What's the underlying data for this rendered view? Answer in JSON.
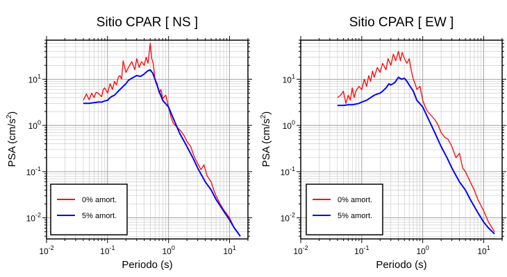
{
  "chart_data": [
    {
      "type": "line",
      "title": "Sitio CPAR [ NS ]",
      "xlabel": "Periodo (s)",
      "ylabel_base": "PSA (cm/s",
      "ylabel_sup": "2",
      "ylabel_end": ")",
      "x_scale": "log",
      "y_scale": "log",
      "xlim": [
        0.01,
        20
      ],
      "ylim": [
        0.0035,
        70
      ],
      "grid": true,
      "legend": "bottom-left",
      "x_ticks": [
        {
          "base": "10",
          "exp": "-2",
          "value": 0.01
        },
        {
          "base": "10",
          "exp": "-1",
          "value": 0.1
        },
        {
          "base": "10",
          "exp": "0",
          "value": 1
        },
        {
          "base": "10",
          "exp": "1",
          "value": 10
        }
      ],
      "y_ticks": [
        {
          "base": "10",
          "exp": "-2",
          "value": 0.01
        },
        {
          "base": "10",
          "exp": "-1",
          "value": 0.1
        },
        {
          "base": "10",
          "exp": "0",
          "value": 1
        },
        {
          "base": "10",
          "exp": "1",
          "value": 10
        }
      ],
      "series": [
        {
          "name": "0% amort.",
          "color": "#ff0000",
          "x": [
            0.04,
            0.045,
            0.05,
            0.055,
            0.06,
            0.065,
            0.07,
            0.08,
            0.085,
            0.09,
            0.1,
            0.11,
            0.12,
            0.13,
            0.14,
            0.15,
            0.16,
            0.17,
            0.18,
            0.2,
            0.22,
            0.25,
            0.28,
            0.3,
            0.33,
            0.36,
            0.4,
            0.43,
            0.46,
            0.5,
            0.53,
            0.56,
            0.6,
            0.65,
            0.7,
            0.75,
            0.8,
            0.9,
            1.0,
            1.1,
            1.2,
            1.4,
            1.6,
            1.8,
            2.0,
            2.3,
            2.6,
            3.0,
            3.4,
            3.8,
            4.3,
            5.0,
            5.5,
            6.0,
            7.0,
            8.0,
            10.0,
            12.0,
            15.0
          ],
          "y": [
            3.5,
            4.8,
            3.6,
            5.0,
            4.0,
            5.2,
            5.0,
            4.2,
            6.0,
            6.5,
            5.0,
            8.0,
            6.0,
            9.0,
            7.5,
            11.0,
            12.0,
            10.0,
            25.0,
            14.0,
            18.0,
            24.0,
            16.0,
            28.0,
            18.0,
            24.0,
            20.0,
            30.0,
            22.0,
            60.0,
            28.0,
            22.0,
            10.0,
            8.0,
            5.0,
            6.0,
            3.8,
            4.5,
            2.5,
            1.5,
            1.1,
            0.9,
            0.75,
            0.6,
            0.45,
            0.35,
            0.22,
            0.15,
            0.11,
            0.14,
            0.08,
            0.06,
            0.04,
            0.03,
            0.02,
            0.015,
            0.01,
            0.006,
            0.004
          ]
        },
        {
          "name": "5% amort.",
          "color": "#0000ff",
          "x": [
            0.04,
            0.05,
            0.06,
            0.07,
            0.08,
            0.09,
            0.1,
            0.11,
            0.12,
            0.13,
            0.14,
            0.15,
            0.17,
            0.2,
            0.22,
            0.25,
            0.3,
            0.35,
            0.4,
            0.45,
            0.5,
            0.55,
            0.6,
            0.7,
            0.8,
            1.0,
            1.2,
            1.5,
            2.0,
            2.5,
            3.0,
            4.0,
            5.0,
            6.0,
            8.0,
            10.0,
            12.0,
            15.0
          ],
          "y": [
            3.0,
            3.0,
            3.1,
            3.2,
            3.2,
            3.4,
            3.5,
            4.0,
            4.3,
            4.5,
            5.0,
            5.5,
            6.5,
            8.0,
            9.5,
            10.5,
            12.0,
            11.5,
            13.0,
            15.0,
            16.0,
            13.5,
            10.0,
            5.5,
            3.5,
            2.5,
            1.4,
            0.7,
            0.35,
            0.2,
            0.12,
            0.06,
            0.04,
            0.025,
            0.014,
            0.009,
            0.006,
            0.004
          ]
        }
      ]
    },
    {
      "type": "line",
      "title": "Sitio CPAR [ EW ]",
      "xlabel": "Periodo (s)",
      "ylabel_base": "PSA (cm/s",
      "ylabel_sup": "2",
      "ylabel_end": ")",
      "x_scale": "log",
      "y_scale": "log",
      "xlim": [
        0.01,
        20
      ],
      "ylim": [
        0.0035,
        70
      ],
      "grid": true,
      "legend": "bottom-left",
      "x_ticks": [
        {
          "base": "10",
          "exp": "-2",
          "value": 0.01
        },
        {
          "base": "10",
          "exp": "-1",
          "value": 0.1
        },
        {
          "base": "10",
          "exp": "0",
          "value": 1
        },
        {
          "base": "10",
          "exp": "1",
          "value": 10
        }
      ],
      "y_ticks": [
        {
          "base": "10",
          "exp": "-2",
          "value": 0.01
        },
        {
          "base": "10",
          "exp": "-1",
          "value": 0.1
        },
        {
          "base": "10",
          "exp": "0",
          "value": 1
        },
        {
          "base": "10",
          "exp": "1",
          "value": 10
        }
      ],
      "series": [
        {
          "name": "0% amort.",
          "color": "#ff0000",
          "x": [
            0.04,
            0.045,
            0.05,
            0.055,
            0.06,
            0.065,
            0.07,
            0.075,
            0.08,
            0.09,
            0.1,
            0.11,
            0.12,
            0.13,
            0.14,
            0.15,
            0.16,
            0.18,
            0.2,
            0.22,
            0.25,
            0.27,
            0.3,
            0.33,
            0.36,
            0.4,
            0.43,
            0.46,
            0.5,
            0.55,
            0.6,
            0.65,
            0.7,
            0.75,
            0.8,
            0.9,
            1.0,
            1.1,
            1.2,
            1.4,
            1.6,
            1.8,
            2.0,
            2.3,
            2.6,
            3.0,
            3.5,
            4.0,
            4.5,
            5.0,
            6.0,
            7.0,
            8.0,
            10.0,
            12.0,
            15.0
          ],
          "y": [
            4.0,
            4.5,
            5.5,
            3.0,
            4.5,
            3.5,
            6.5,
            4.0,
            5.5,
            7.0,
            6.0,
            10.0,
            7.0,
            12.0,
            9.0,
            15.0,
            11.0,
            18.0,
            14.0,
            22.0,
            16.0,
            28.0,
            20.0,
            35.0,
            25.0,
            40.0,
            25.0,
            38.0,
            28.0,
            22.0,
            28.0,
            15.0,
            10.0,
            8.0,
            6.0,
            7.0,
            3.5,
            2.5,
            2.0,
            1.6,
            1.3,
            1.0,
            0.7,
            0.55,
            0.5,
            0.35,
            0.2,
            0.25,
            0.12,
            0.1,
            0.06,
            0.04,
            0.025,
            0.014,
            0.008,
            0.005
          ]
        },
        {
          "name": "5% amort.",
          "color": "#0000ff",
          "x": [
            0.04,
            0.05,
            0.06,
            0.07,
            0.08,
            0.09,
            0.1,
            0.12,
            0.14,
            0.16,
            0.18,
            0.2,
            0.22,
            0.25,
            0.28,
            0.3,
            0.35,
            0.4,
            0.45,
            0.5,
            0.55,
            0.6,
            0.7,
            0.8,
            1.0,
            1.2,
            1.5,
            2.0,
            2.5,
            3.0,
            4.0,
            5.0,
            6.0,
            8.0,
            10.0,
            12.0,
            15.0
          ],
          "y": [
            2.7,
            2.7,
            2.8,
            2.8,
            2.9,
            3.0,
            3.2,
            3.5,
            4.0,
            4.5,
            4.8,
            5.0,
            5.5,
            6.5,
            8.0,
            7.5,
            8.5,
            11.0,
            10.0,
            10.5,
            9.0,
            7.5,
            5.5,
            3.5,
            2.5,
            1.5,
            0.8,
            0.35,
            0.2,
            0.12,
            0.06,
            0.04,
            0.025,
            0.013,
            0.008,
            0.006,
            0.0045
          ]
        }
      ]
    }
  ]
}
